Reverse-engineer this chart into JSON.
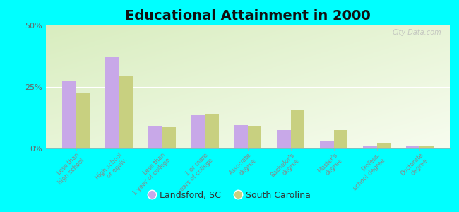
{
  "title": "Educational Attainment in 2000",
  "categories": [
    "Less than\nhigh school",
    "High school\nor equiv.",
    "Less than\n1 year of college",
    "1 or more\nyears of college",
    "Associate\ndegree",
    "Bachelor's\ndegree",
    "Master's\ndegree",
    "Profess.\nschool degree",
    "Doctorate\ndegree"
  ],
  "landsford": [
    27.5,
    37.5,
    9.0,
    13.5,
    9.5,
    7.5,
    3.0,
    0.8,
    1.2
  ],
  "south_carolina": [
    22.5,
    29.5,
    8.5,
    14.0,
    9.0,
    15.5,
    7.5,
    2.0,
    1.0
  ],
  "landsford_color": "#c8a8e8",
  "sc_color": "#c8d080",
  "background_color": "#00ffff",
  "plot_bg_color": "#e8f0d0",
  "ylim": [
    0,
    50
  ],
  "yticks": [
    0,
    25,
    50
  ],
  "ytick_labels": [
    "0%",
    "25%",
    "50%"
  ],
  "legend_landsford": "Landsford, SC",
  "legend_sc": "South Carolina",
  "title_fontsize": 14,
  "watermark": "City-Data.com"
}
